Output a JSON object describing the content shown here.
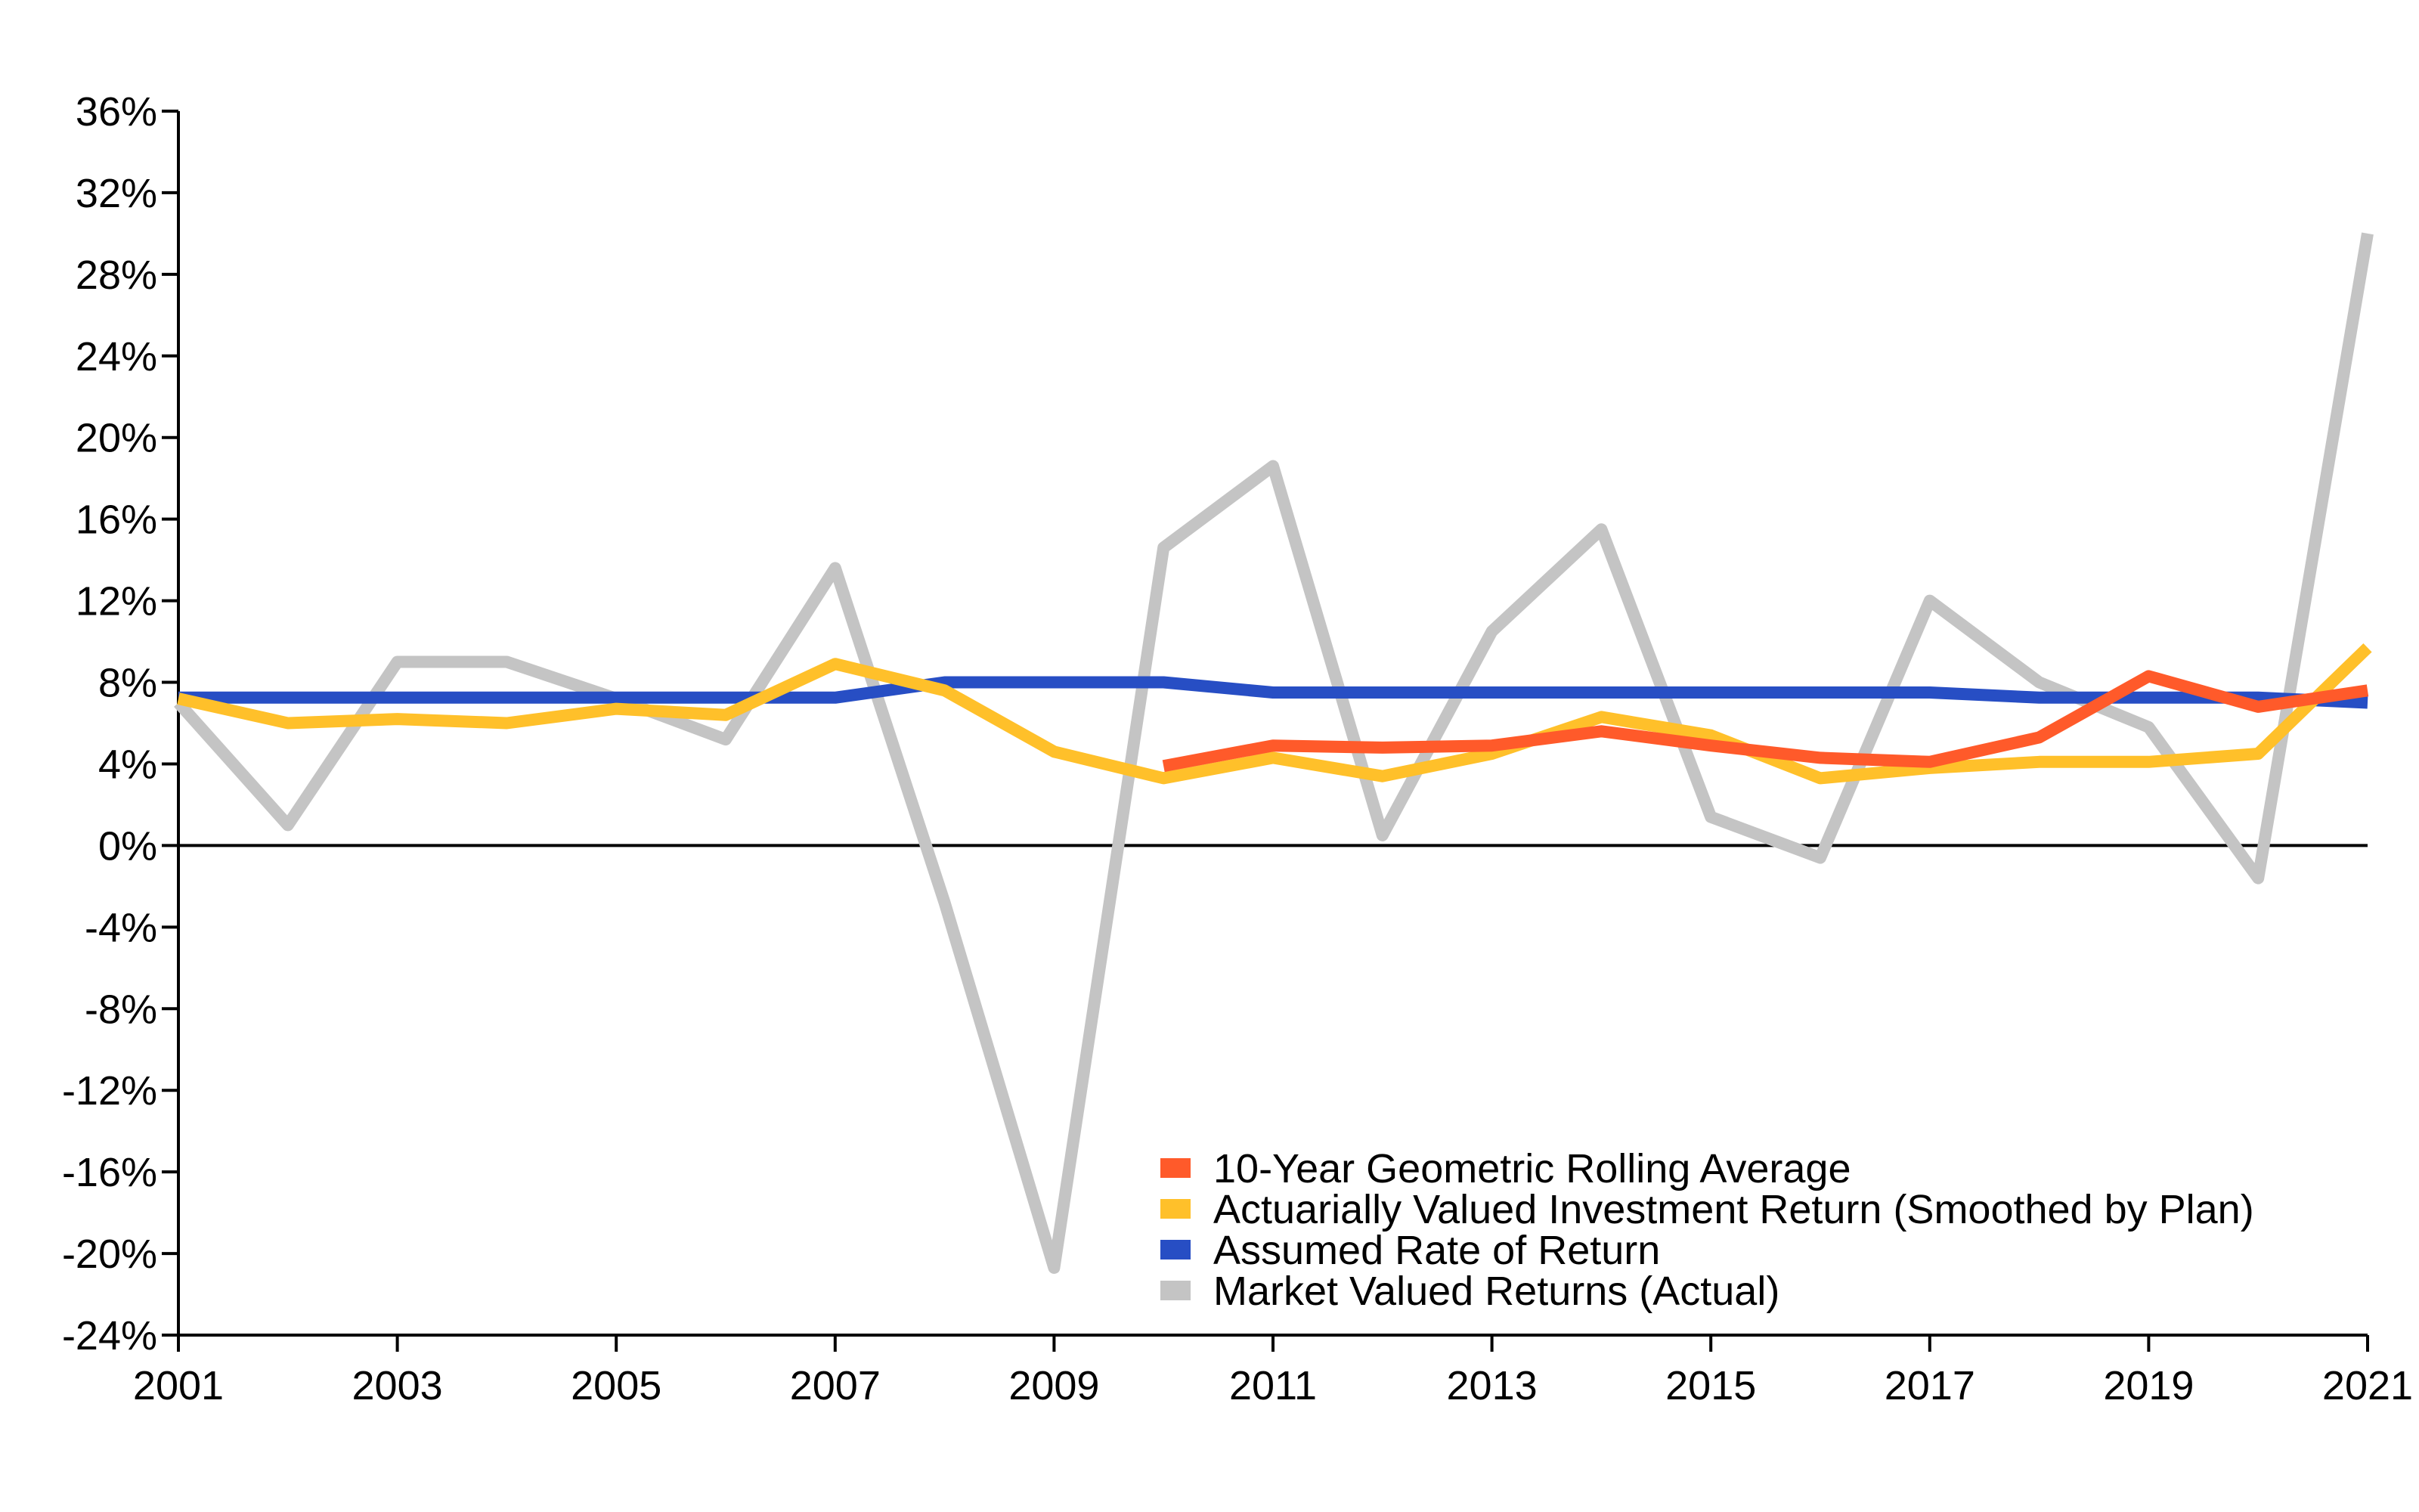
{
  "chart_data": {
    "type": "line",
    "title": "",
    "xlabel": "",
    "ylabel": "",
    "x": [
      2001,
      2002,
      2003,
      2004,
      2005,
      2006,
      2007,
      2008,
      2009,
      2010,
      2011,
      2012,
      2013,
      2014,
      2015,
      2016,
      2017,
      2018,
      2019,
      2020,
      2021
    ],
    "xticks": [
      "2001",
      "2003",
      "2005",
      "2007",
      "2009",
      "2011",
      "2013",
      "2015",
      "2017",
      "2019",
      "2021"
    ],
    "xlim": [
      2001,
      2021
    ],
    "ylim": [
      -24,
      36
    ],
    "yticks": [
      "36%",
      "32%",
      "28%",
      "24%",
      "20%",
      "16%",
      "12%",
      "8%",
      "4%",
      "0%",
      "-4%",
      "-8%",
      "-12%",
      "-16%",
      "-20%",
      "-24%"
    ],
    "ytick_values": [
      36,
      32,
      28,
      24,
      20,
      16,
      12,
      8,
      4,
      0,
      -4,
      -8,
      -12,
      -16,
      -20,
      -24
    ],
    "grid": false,
    "legend_position": "bottom-right",
    "series": [
      {
        "name": "10-Year Geometric Rolling Average",
        "color": "#ff5a2a",
        "values": [
          null,
          null,
          null,
          null,
          null,
          null,
          null,
          null,
          null,
          3.9,
          4.9,
          4.8,
          4.9,
          5.6,
          4.9,
          4.3,
          4.1,
          5.3,
          8.3,
          6.8,
          7.6
        ]
      },
      {
        "name": "Actuarially Valued Investment Return (Smoothed by Plan)",
        "color": "#ffc02a",
        "values": [
          7.2,
          6.0,
          6.2,
          6.0,
          6.7,
          6.4,
          8.9,
          7.6,
          4.6,
          3.3,
          4.3,
          3.4,
          4.5,
          6.3,
          5.4,
          3.3,
          3.8,
          4.1,
          4.1,
          4.5,
          9.7
        ]
      },
      {
        "name": "Assumed Rate of Return",
        "color": "#274ec4",
        "values": [
          7.25,
          7.25,
          7.25,
          7.25,
          7.25,
          7.25,
          7.25,
          8.0,
          8.0,
          8.0,
          7.5,
          7.5,
          7.5,
          7.5,
          7.5,
          7.5,
          7.5,
          7.25,
          7.25,
          7.25,
          7.0
        ]
      },
      {
        "name": "Market Valued Returns (Actual)",
        "color": "#c4c4c4",
        "values": [
          7.0,
          1.0,
          9.0,
          9.0,
          7.2,
          5.2,
          13.6,
          -2.8,
          -20.7,
          14.6,
          18.6,
          0.5,
          10.5,
          15.5,
          1.4,
          -0.6,
          12.0,
          8.0,
          5.8,
          -1.6,
          30.0
        ]
      }
    ]
  }
}
